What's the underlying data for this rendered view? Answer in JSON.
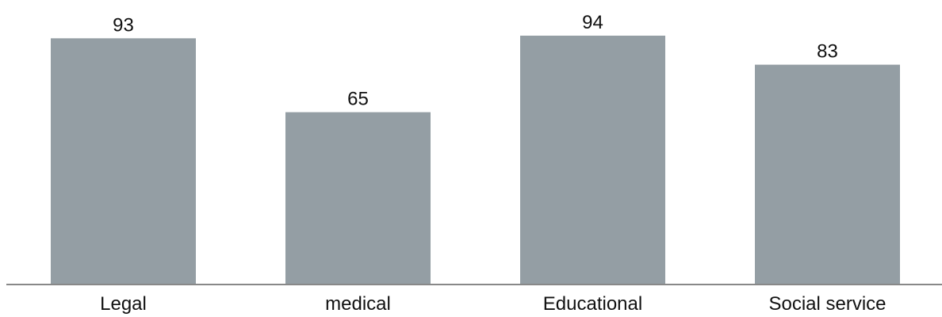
{
  "chart_data": {
    "type": "bar",
    "categories": [
      "Legal",
      "medical",
      "Educational",
      "Social service"
    ],
    "values": [
      93,
      65,
      94,
      83
    ],
    "title": "",
    "xlabel": "",
    "ylabel": "",
    "ylim": [
      0,
      100
    ],
    "grid": false,
    "legend": "none",
    "colors": {
      "bar": "#949ea4",
      "axis": "#888888",
      "text": "#111111"
    }
  }
}
